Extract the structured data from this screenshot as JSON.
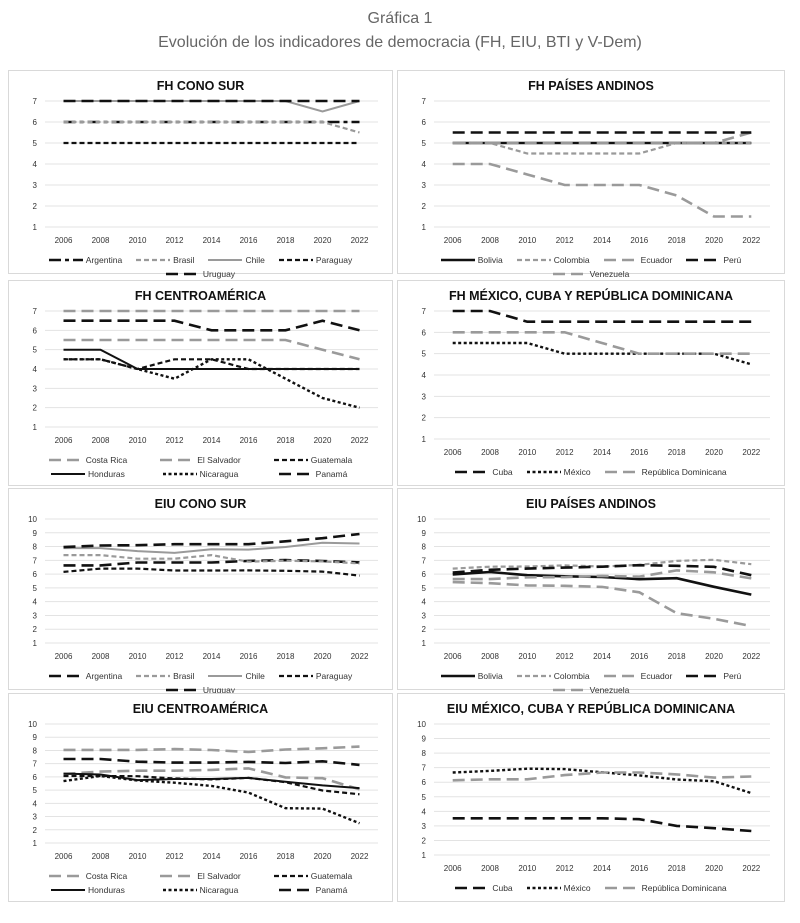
{
  "header": {
    "title": "Gráfica 1",
    "subtitle": "Evolución de los indicadores de democracia (FH, EIU, BTI y V-Dem)"
  },
  "colors": {
    "black": "#111111",
    "gray": "#9a9a9a",
    "grid": "#e3e3e3",
    "axis": "#333333"
  },
  "chart_data": [
    {
      "type": "line",
      "title": "FH CONO SUR",
      "x": [
        "2006",
        "2008",
        "2010",
        "2012",
        "2014",
        "2016",
        "2018",
        "2020",
        "2022"
      ],
      "ylim": [
        1,
        7
      ],
      "yticks": [
        1,
        2,
        3,
        4,
        5,
        6,
        7
      ],
      "legend": "bottom",
      "legend_rows": 1,
      "series": [
        {
          "name": "Argentina",
          "color": "black",
          "style": "dashdot",
          "values": [
            6,
            6,
            6,
            6,
            6,
            6,
            6,
            6,
            6
          ]
        },
        {
          "name": "Brasil",
          "color": "gray",
          "style": "dash",
          "values": [
            6,
            6,
            6,
            6,
            6,
            6,
            6,
            6,
            5.5
          ]
        },
        {
          "name": "Chile",
          "color": "gray",
          "style": "solid",
          "values": [
            7,
            7,
            7,
            7,
            7,
            7,
            7,
            6.5,
            7
          ]
        },
        {
          "name": "Paraguay",
          "color": "black",
          "style": "dash",
          "values": [
            5,
            5,
            5,
            5,
            5,
            5,
            5,
            5,
            5
          ]
        },
        {
          "name": "Uruguay",
          "color": "black",
          "style": "longdash",
          "values": [
            7,
            7,
            7,
            7,
            7,
            7,
            7,
            7,
            7
          ]
        }
      ]
    },
    {
      "type": "line",
      "title": "FH PAÍSES ANDINOS",
      "x": [
        "2006",
        "2008",
        "2010",
        "2012",
        "2014",
        "2016",
        "2018",
        "2020",
        "2022"
      ],
      "ylim": [
        1,
        7
      ],
      "yticks": [
        1,
        2,
        3,
        4,
        5,
        6,
        7
      ],
      "legend": "bottom",
      "legend_rows": 1,
      "series": [
        {
          "name": "Bolivia",
          "color": "black",
          "style": "solid2",
          "values": [
            5,
            5,
            5,
            5,
            5,
            5,
            5,
            5,
            5
          ]
        },
        {
          "name": "Colombia",
          "color": "gray",
          "style": "dash",
          "values": [
            5,
            5,
            4.5,
            4.5,
            4.5,
            4.5,
            5,
            5,
            5
          ]
        },
        {
          "name": "Ecuador",
          "color": "gray",
          "style": "longdash",
          "values": [
            5,
            5,
            5,
            5,
            5,
            5,
            5,
            5,
            5.5
          ]
        },
        {
          "name": "Perú",
          "color": "black",
          "style": "longdash",
          "values": [
            5.5,
            5.5,
            5.5,
            5.5,
            5.5,
            5.5,
            5.5,
            5.5,
            5.5
          ]
        },
        {
          "name": "Venezuela",
          "color": "gray",
          "style": "longdash",
          "values": [
            4,
            4,
            3.5,
            3,
            3,
            3,
            2.5,
            1.5,
            1.5
          ]
        }
      ]
    },
    {
      "type": "line",
      "title": "FH CENTROAMÉRICA",
      "x": [
        "2006",
        "2008",
        "2010",
        "2012",
        "2014",
        "2016",
        "2018",
        "2020",
        "2022"
      ],
      "ylim": [
        1,
        7
      ],
      "yticks": [
        1,
        2,
        3,
        4,
        5,
        6,
        7
      ],
      "legend": "bottom",
      "legend_rows": 2,
      "series": [
        {
          "name": "Costa Rica",
          "color": "gray",
          "style": "longdash",
          "values": [
            7,
            7,
            7,
            7,
            7,
            7,
            7,
            7,
            7
          ]
        },
        {
          "name": "El Salvador",
          "color": "gray",
          "style": "longdash",
          "values": [
            5.5,
            5.5,
            5.5,
            5.5,
            5.5,
            5.5,
            5.5,
            5,
            4.5
          ]
        },
        {
          "name": "Guatemala",
          "color": "black",
          "style": "dash",
          "values": [
            4.5,
            4.5,
            4,
            4.5,
            4.5,
            4,
            4,
            4,
            4
          ]
        },
        {
          "name": "Honduras",
          "color": "black",
          "style": "solid",
          "values": [
            5,
            5,
            4,
            4,
            4,
            4,
            4,
            4,
            4
          ]
        },
        {
          "name": "Nicaragua",
          "color": "black",
          "style": "dot",
          "values": [
            4.5,
            4.5,
            4,
            3.5,
            4.5,
            4.5,
            3.5,
            2.5,
            2
          ]
        },
        {
          "name": "Panamá",
          "color": "black",
          "style": "longdash",
          "values": [
            6.5,
            6.5,
            6.5,
            6.5,
            6,
            6,
            6,
            6.5,
            6
          ]
        }
      ]
    },
    {
      "type": "line",
      "title": "FH MÉXICO, CUBA Y REPÚBLICA DOMINICANA",
      "x": [
        "2006",
        "2008",
        "2010",
        "2012",
        "2014",
        "2016",
        "2018",
        "2020",
        "2022"
      ],
      "ylim": [
        1,
        7
      ],
      "yticks": [
        1,
        2,
        3,
        4,
        5,
        6,
        7
      ],
      "legend": "bottom",
      "legend_rows": 1,
      "series": [
        {
          "name": "Cuba",
          "color": "black",
          "style": "longdash",
          "values": [
            7,
            7,
            6.5,
            6.5,
            6.5,
            6.5,
            6.5,
            6.5,
            6.5
          ]
        },
        {
          "name": "México",
          "color": "black",
          "style": "dot",
          "values": [
            5.5,
            5.5,
            5.5,
            5,
            5,
            5,
            5,
            5,
            4.5
          ]
        },
        {
          "name": "República Dominicana",
          "color": "gray",
          "style": "longdash",
          "values": [
            6,
            6,
            6,
            6,
            5.5,
            5,
            5,
            5,
            5
          ]
        }
      ]
    },
    {
      "type": "line",
      "title": "EIU CONO SUR",
      "x": [
        "2006",
        "2008",
        "2010",
        "2012",
        "2014",
        "2016",
        "2018",
        "2020",
        "2022"
      ],
      "ylim": [
        1,
        10
      ],
      "yticks": [
        1,
        2,
        3,
        4,
        5,
        6,
        7,
        8,
        9,
        10
      ],
      "legend": "bottom",
      "legend_rows": 1,
      "series": [
        {
          "name": "Argentina",
          "color": "black",
          "style": "longdash",
          "values": [
            6.63,
            6.63,
            6.84,
            6.84,
            6.84,
            6.96,
            7.02,
            6.95,
            6.85
          ]
        },
        {
          "name": "Brasil",
          "color": "gray",
          "style": "dash",
          "values": [
            7.38,
            7.38,
            7.12,
            7.12,
            7.38,
            6.9,
            6.97,
            6.92,
            6.78
          ]
        },
        {
          "name": "Chile",
          "color": "gray",
          "style": "solid",
          "values": [
            7.89,
            7.89,
            7.67,
            7.54,
            7.8,
            7.78,
            7.97,
            8.28,
            8.22
          ]
        },
        {
          "name": "Paraguay",
          "color": "black",
          "style": "dash",
          "values": [
            6.16,
            6.4,
            6.4,
            6.26,
            6.26,
            6.27,
            6.24,
            6.18,
            5.89
          ]
        },
        {
          "name": "Uruguay",
          "color": "black",
          "style": "longdash",
          "values": [
            7.96,
            8.08,
            8.1,
            8.17,
            8.17,
            8.17,
            8.38,
            8.61,
            8.91
          ]
        }
      ]
    },
    {
      "type": "line",
      "title": "EIU PAÍSES ANDINOS",
      "x": [
        "2006",
        "2008",
        "2010",
        "2012",
        "2014",
        "2016",
        "2018",
        "2020",
        "2022"
      ],
      "ylim": [
        1,
        10
      ],
      "yticks": [
        1,
        2,
        3,
        4,
        5,
        6,
        7,
        8,
        9,
        10
      ],
      "legend": "bottom",
      "legend_rows": 1,
      "series": [
        {
          "name": "Bolivia",
          "color": "black",
          "style": "solid2",
          "values": [
            5.98,
            6.15,
            5.92,
            5.84,
            5.79,
            5.63,
            5.7,
            5.08,
            4.51
          ]
        },
        {
          "name": "Colombia",
          "color": "gray",
          "style": "dash",
          "values": [
            6.4,
            6.54,
            6.55,
            6.63,
            6.55,
            6.67,
            6.96,
            7.04,
            6.72
          ]
        },
        {
          "name": "Ecuador",
          "color": "gray",
          "style": "longdash",
          "values": [
            5.64,
            5.64,
            5.77,
            5.78,
            5.87,
            5.81,
            6.27,
            6.13,
            5.69
          ]
        },
        {
          "name": "Perú",
          "color": "black",
          "style": "longdash",
          "values": [
            6.11,
            6.31,
            6.4,
            6.47,
            6.54,
            6.65,
            6.6,
            6.53,
            5.92
          ]
        },
        {
          "name": "Venezuela",
          "color": "gray",
          "style": "longdash",
          "values": [
            5.42,
            5.34,
            5.18,
            5.15,
            5.07,
            4.68,
            3.16,
            2.76,
            2.23
          ]
        }
      ]
    },
    {
      "type": "line",
      "title": "EIU CENTROAMÉRICA",
      "x": [
        "2006",
        "2008",
        "2010",
        "2012",
        "2014",
        "2016",
        "2018",
        "2020",
        "2022"
      ],
      "ylim": [
        1,
        10
      ],
      "yticks": [
        1,
        2,
        3,
        4,
        5,
        6,
        7,
        8,
        9,
        10
      ],
      "legend": "bottom",
      "legend_rows": 2,
      "series": [
        {
          "name": "Costa Rica",
          "color": "gray",
          "style": "longdash",
          "values": [
            8.04,
            8.04,
            8.04,
            8.1,
            8.03,
            7.88,
            8.07,
            8.16,
            8.29
          ]
        },
        {
          "name": "El Salvador",
          "color": "gray",
          "style": "longdash",
          "values": [
            6.22,
            6.4,
            6.47,
            6.47,
            6.53,
            6.64,
            5.96,
            5.9,
            5.06
          ]
        },
        {
          "name": "Guatemala",
          "color": "black",
          "style": "dash",
          "values": [
            6.07,
            6.07,
            6.05,
            5.88,
            5.81,
            5.92,
            5.6,
            4.97,
            4.68
          ]
        },
        {
          "name": "Honduras",
          "color": "black",
          "style": "solid",
          "values": [
            6.25,
            6.18,
            5.76,
            5.84,
            5.84,
            5.92,
            5.63,
            5.36,
            5.15
          ]
        },
        {
          "name": "Nicaragua",
          "color": "black",
          "style": "dot",
          "values": [
            5.68,
            6.07,
            5.73,
            5.56,
            5.32,
            4.81,
            3.63,
            3.6,
            2.5
          ]
        },
        {
          "name": "Panamá",
          "color": "black",
          "style": "longdash",
          "values": [
            7.35,
            7.35,
            7.15,
            7.08,
            7.08,
            7.13,
            7.05,
            7.18,
            6.91
          ]
        }
      ]
    },
    {
      "type": "line",
      "title": "EIU MÉXICO, CUBA Y REPÚBLICA DOMINICANA",
      "x": [
        "2006",
        "2008",
        "2010",
        "2012",
        "2014",
        "2016",
        "2018",
        "2020",
        "2022"
      ],
      "ylim": [
        1,
        10
      ],
      "yticks": [
        1,
        2,
        3,
        4,
        5,
        6,
        7,
        8,
        9,
        10
      ],
      "legend": "bottom",
      "legend_rows": 1,
      "series": [
        {
          "name": "Cuba",
          "color": "black",
          "style": "longdash",
          "values": [
            3.52,
            3.52,
            3.52,
            3.52,
            3.52,
            3.46,
            3.0,
            2.84,
            2.65
          ]
        },
        {
          "name": "México",
          "color": "black",
          "style": "dot",
          "values": [
            6.67,
            6.78,
            6.93,
            6.9,
            6.68,
            6.47,
            6.19,
            6.07,
            5.25
          ]
        },
        {
          "name": "República Dominicana",
          "color": "gray",
          "style": "longdash",
          "values": [
            6.13,
            6.2,
            6.2,
            6.49,
            6.67,
            6.67,
            6.54,
            6.32,
            6.39
          ]
        }
      ]
    }
  ]
}
